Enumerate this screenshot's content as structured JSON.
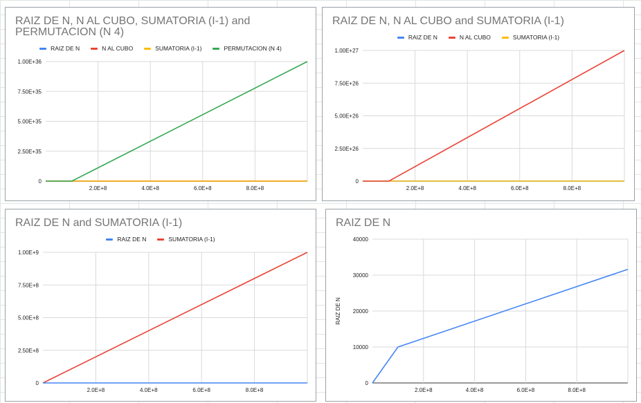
{
  "charts": [
    {
      "title": "RAIZ DE N, N AL CUBO, SUMATORIA (I-1) and PERMUTACION (N 4)",
      "legend": [
        {
          "label": "RAIZ DE N",
          "color": "#4285f4"
        },
        {
          "label": "N AL CUBO",
          "color": "#ea4335"
        },
        {
          "label": "SUMATORIA (I-1)",
          "color": "#fbbc04"
        },
        {
          "label": "PERMUTACION (N 4)",
          "color": "#34a853"
        }
      ],
      "y_tick_labels": [
        "0",
        "2.50E+35",
        "5.00E+35",
        "7.50E+35",
        "1.00E+36"
      ],
      "x_tick_labels": [
        "2.0E+8",
        "4.0E+8",
        "6.0E+8",
        "8.0E+8"
      ]
    },
    {
      "title": "RAIZ DE N, N AL CUBO and SUMATORIA (I-1)",
      "legend": [
        {
          "label": "RAIZ DE N",
          "color": "#4285f4"
        },
        {
          "label": "N AL CUBO",
          "color": "#ea4335"
        },
        {
          "label": "SUMATORIA (I-1)",
          "color": "#fbbc04"
        }
      ],
      "y_tick_labels": [
        "0",
        "2.50E+26",
        "5.00E+26",
        "7.50E+26",
        "1.00E+27"
      ],
      "x_tick_labels": [
        "2.0E+8",
        "4.0E+8",
        "6.0E+8",
        "8.0E+8"
      ]
    },
    {
      "title": "RAIZ DE N and SUMATORIA (I-1)",
      "legend": [
        {
          "label": "RAIZ DE N",
          "color": "#4285f4"
        },
        {
          "label": "SUMATORIA (I-1)",
          "color": "#ea4335"
        }
      ],
      "y_tick_labels": [
        "0",
        "2.50E+8",
        "5.00E+8",
        "7.50E+8",
        "1.00E+9"
      ],
      "x_tick_labels": [
        "2.0E+8",
        "4.0E+8",
        "6.0E+8",
        "8.0E+8"
      ]
    },
    {
      "title": "RAIZ DE N",
      "legend": [],
      "y_axis_label": "RAIZ DE N",
      "y_tick_labels": [
        "0",
        "10000",
        "20000",
        "30000",
        "40000"
      ],
      "x_tick_labels": [
        "2.0E+8",
        "4.0E+8",
        "6.0E+8",
        "8.0E+8"
      ]
    }
  ],
  "chart_data": [
    {
      "type": "line",
      "title": "RAIZ DE N, N AL CUBO, SUMATORIA (I-1) and PERMUTACION (N 4)",
      "xlim": [
        0,
        1000000000
      ],
      "ylim": [
        0,
        1e+36
      ],
      "x_ticks": [
        200000000,
        400000000,
        600000000,
        800000000
      ],
      "y_ticks": [
        0,
        2.5e+35,
        5e+35,
        7.5e+35,
        1e+36
      ],
      "grid": true,
      "legend_position": "top",
      "series": [
        {
          "name": "RAIZ DE N",
          "color": "#4285f4",
          "x": [
            0,
            1000000000
          ],
          "y": [
            0,
            0
          ]
        },
        {
          "name": "N AL CUBO",
          "color": "#ea4335",
          "x": [
            0,
            1000000000
          ],
          "y": [
            0,
            0
          ]
        },
        {
          "name": "SUMATORIA (I-1)",
          "color": "#fbbc04",
          "x": [
            0,
            1000000000
          ],
          "y": [
            0,
            0
          ]
        },
        {
          "name": "PERMUTACION (N 4)",
          "color": "#34a853",
          "x": [
            0,
            100000000,
            1000000000
          ],
          "y": [
            0,
            0,
            1e+36
          ]
        }
      ]
    },
    {
      "type": "line",
      "title": "RAIZ DE N, N AL CUBO and SUMATORIA (I-1)",
      "xlim": [
        0,
        1000000000
      ],
      "ylim": [
        0,
        1e+27
      ],
      "x_ticks": [
        200000000,
        400000000,
        600000000,
        800000000
      ],
      "y_ticks": [
        0,
        2.5e+26,
        5e+26,
        7.5e+26,
        1e+27
      ],
      "grid": true,
      "legend_position": "top",
      "series": [
        {
          "name": "RAIZ DE N",
          "color": "#4285f4",
          "x": [
            0,
            1000000000
          ],
          "y": [
            0,
            0
          ]
        },
        {
          "name": "SUMATORIA (I-1)",
          "color": "#fbbc04",
          "x": [
            0,
            1000000000
          ],
          "y": [
            0,
            0
          ]
        },
        {
          "name": "N AL CUBO",
          "color": "#ea4335",
          "x": [
            0,
            100000000,
            1000000000
          ],
          "y": [
            0,
            0,
            1e+27
          ]
        }
      ]
    },
    {
      "type": "line",
      "title": "RAIZ DE N and SUMATORIA (I-1)",
      "xlim": [
        0,
        1000000000
      ],
      "ylim": [
        0,
        1000000000.0
      ],
      "x_ticks": [
        200000000,
        400000000,
        600000000,
        800000000
      ],
      "y_ticks": [
        0,
        250000000.0,
        500000000.0,
        750000000.0,
        1000000000.0
      ],
      "grid": true,
      "legend_position": "top",
      "series": [
        {
          "name": "SUMATORIA (I-1)",
          "color": "#ea4335",
          "x": [
            0,
            1000000000
          ],
          "y": [
            0,
            1000000000.0
          ]
        },
        {
          "name": "RAIZ DE N",
          "color": "#4285f4",
          "x": [
            0,
            1000000000
          ],
          "y": [
            0,
            0
          ]
        }
      ]
    },
    {
      "type": "line",
      "title": "RAIZ DE N",
      "ylabel": "RAIZ DE N",
      "xlim": [
        0,
        1000000000
      ],
      "ylim": [
        0,
        40000
      ],
      "x_ticks": [
        200000000,
        400000000,
        600000000,
        800000000
      ],
      "y_ticks": [
        0,
        10000,
        20000,
        30000,
        40000
      ],
      "grid": true,
      "series": [
        {
          "name": "RAIZ DE N",
          "color": "#4285f4",
          "x": [
            0,
            100000000,
            1000000000
          ],
          "y": [
            0,
            10000,
            31623
          ]
        }
      ]
    }
  ]
}
